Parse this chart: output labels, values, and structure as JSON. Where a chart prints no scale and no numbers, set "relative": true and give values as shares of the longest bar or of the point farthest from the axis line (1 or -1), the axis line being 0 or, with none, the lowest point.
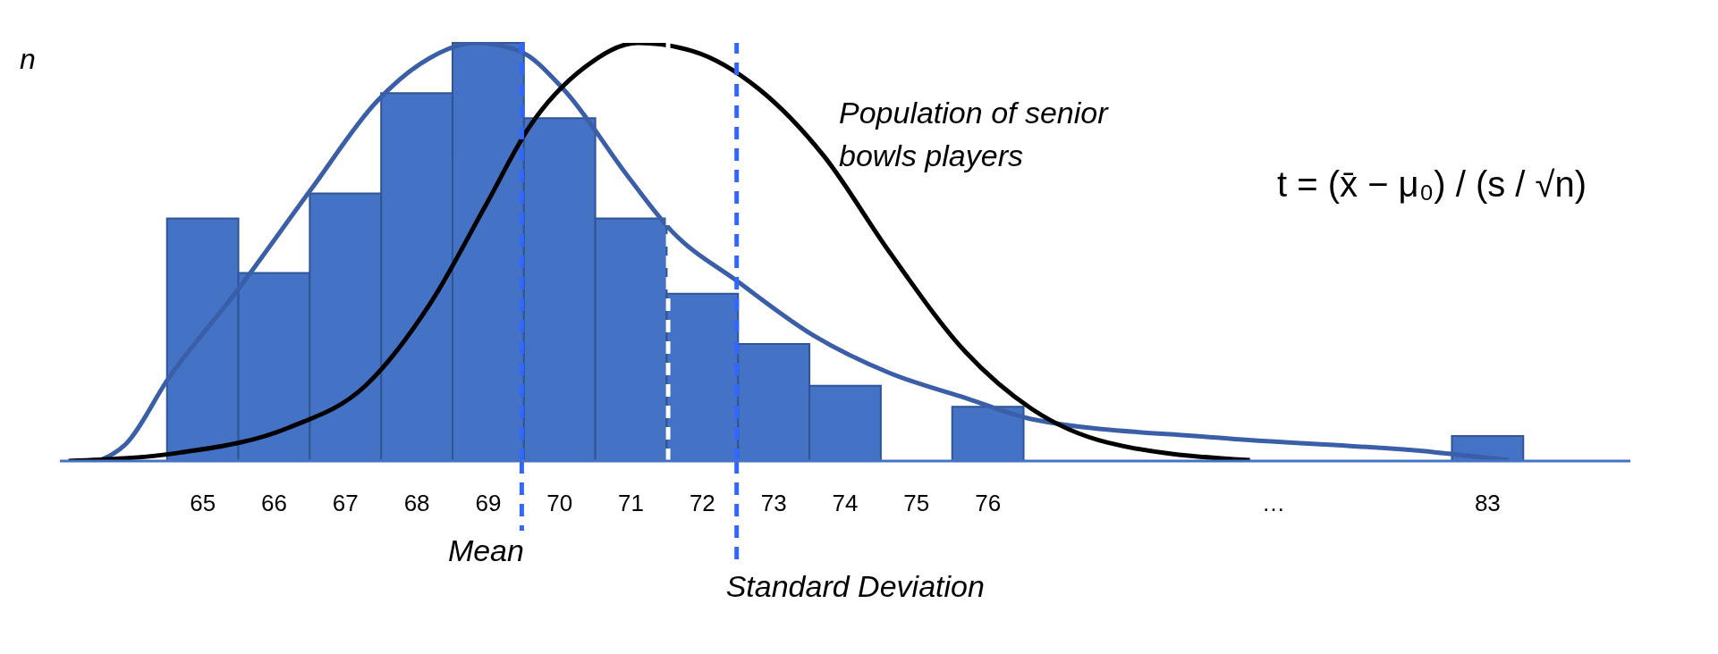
{
  "chart_data": {
    "type": "histogram",
    "relative": true,
    "ylabel": "n",
    "bins": [
      64.5,
      65.5,
      66.5,
      67.5,
      68.5,
      69.5,
      70.5,
      71.5,
      72.5,
      73.5,
      74.5,
      75.5,
      76.5,
      82.5,
      83.5
    ],
    "values": [
      0.58,
      0.45,
      0.64,
      0.88,
      1.0,
      0.82,
      0.58,
      0.4,
      0.28,
      0.18,
      0,
      0.13,
      0,
      0.06
    ],
    "color": "#4472c4",
    "series": [
      {
        "type": "line",
        "color": "#3a5fa8",
        "x": [
          63.54,
          63.92,
          64.53,
          65.45,
          66.52,
          67.44,
          68.05,
          68.82,
          69.44,
          70.05,
          70.96,
          71.57,
          72.49,
          73.56,
          74.63,
          75.7,
          76.62,
          79.2,
          82.26,
          83.3
        ],
        "values": [
          0,
          0.04,
          0.2,
          0.4,
          0.65,
          0.86,
          0.95,
          1.0,
          0.98,
          0.89,
          0.68,
          0.55,
          0.43,
          0.3,
          0.21,
          0.15,
          0.1,
          0.056,
          0.021,
          0.002
        ]
      },
      {
        "type": "line",
        "color": "#000000",
        "x": [
          63.12,
          64.68,
          66.21,
          67.28,
          68.2,
          68.96,
          69.58,
          70.34,
          71.1,
          71.87,
          72.79,
          73.7,
          74.62,
          75.69,
          76.61,
          77.68,
          79.67
        ],
        "values": [
          0,
          0.02,
          0.08,
          0.18,
          0.38,
          0.61,
          0.8,
          0.94,
          1.0,
          0.98,
          0.89,
          0.73,
          0.5,
          0.26,
          0.125,
          0.044,
          0.002
        ]
      }
    ],
    "xlim": [
      63,
      85
    ],
    "xticks": [
      65,
      66,
      67,
      68,
      69,
      70,
      71,
      72,
      73,
      74,
      75,
      76,
      {
        "value": 80,
        "label": "…"
      },
      83
    ],
    "ref_lines": [
      {
        "axis": "x",
        "value": 69.47,
        "label": "Mean",
        "color": "#3366ff",
        "line_style": "dashed"
      },
      {
        "axis": "x",
        "value": 71.52,
        "label": null,
        "color": "#ffffff",
        "line_style": "dashed"
      },
      {
        "axis": "x",
        "value": 72.48,
        "label": "Standard Deviation",
        "color": "#3366ff",
        "line_style": "dashed"
      }
    ],
    "annotations": [
      "Population of senior bowls players",
      "t = (x̄ − μ₀) / (s / √n)"
    ],
    "tick_labels": "x"
  }
}
